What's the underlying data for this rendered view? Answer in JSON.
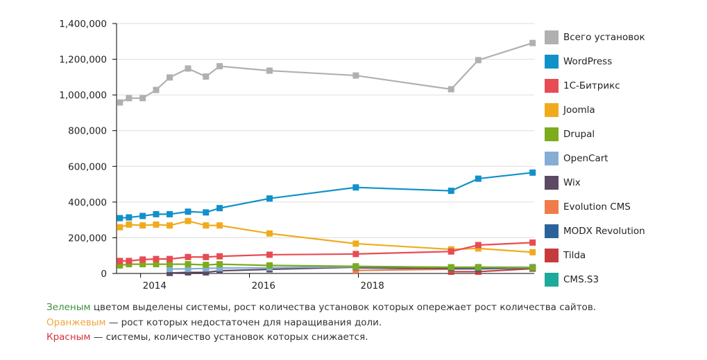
{
  "chart_data": {
    "type": "line",
    "title": "",
    "xlabel": "",
    "ylabel": "",
    "xlim": [
      "2013-07-24",
      "2021-03-26"
    ],
    "ylim": [
      0,
      1400000
    ],
    "grid": "horizontal",
    "legend_position": "right",
    "x_ticks": [
      {
        "date": "2014-01-01",
        "label": "2014"
      },
      {
        "date": "2016-01-01",
        "label": "2016"
      },
      {
        "date": "2018-01-01",
        "label": "2018"
      }
    ],
    "y_ticks": [
      {
        "value": 0,
        "label": "0"
      },
      {
        "value": 200000,
        "label": "200,000"
      },
      {
        "value": 400000,
        "label": "400,000"
      },
      {
        "value": 600000,
        "label": "600,000"
      },
      {
        "value": 800000,
        "label": "800,000"
      },
      {
        "value": 1000000,
        "label": "1,000,000"
      },
      {
        "value": 1200000,
        "label": "1,200,000"
      },
      {
        "value": 1400000,
        "label": "1,400,000"
      }
    ],
    "series": [
      {
        "name": "Всего установок",
        "color": "#b0b0b0",
        "points": [
          [
            "2013-08-15",
            958000
          ],
          [
            "2013-10-15",
            982000
          ],
          [
            "2014-01-15",
            982000
          ],
          [
            "2014-04-15",
            1028000
          ],
          [
            "2014-07-15",
            1098000
          ],
          [
            "2014-11-15",
            1148000
          ],
          [
            "2015-03-15",
            1103000
          ],
          [
            "2015-06-15",
            1161000
          ],
          [
            "2016-05-15",
            1136000
          ],
          [
            "2017-12-15",
            1109000
          ],
          [
            "2019-09-15",
            1032000
          ],
          [
            "2020-03-15",
            1195000
          ],
          [
            "2021-03-15",
            1291000
          ]
        ]
      },
      {
        "name": "WordPress",
        "color": "#1191c9",
        "points": [
          [
            "2013-08-15",
            310000
          ],
          [
            "2013-10-15",
            314000
          ],
          [
            "2014-01-15",
            322000
          ],
          [
            "2014-04-15",
            332000
          ],
          [
            "2014-07-15",
            332000
          ],
          [
            "2014-11-15",
            346000
          ],
          [
            "2015-03-15",
            342000
          ],
          [
            "2015-06-15",
            366000
          ],
          [
            "2016-05-15",
            420000
          ],
          [
            "2017-12-15",
            482000
          ],
          [
            "2019-09-15",
            463000
          ],
          [
            "2020-03-15",
            531000
          ],
          [
            "2021-03-15",
            565000
          ]
        ]
      },
      {
        "name": "1С-Битрикс",
        "color": "#e84b53",
        "points": [
          [
            "2013-08-15",
            70000
          ],
          [
            "2013-10-15",
            70000
          ],
          [
            "2014-01-15",
            78000
          ],
          [
            "2014-04-15",
            81000
          ],
          [
            "2014-07-15",
            81000
          ],
          [
            "2014-11-15",
            92000
          ],
          [
            "2015-03-15",
            92000
          ],
          [
            "2015-06-15",
            96000
          ],
          [
            "2016-05-15",
            105000
          ],
          [
            "2017-12-15",
            109000
          ],
          [
            "2019-09-15",
            123000
          ],
          [
            "2020-03-15",
            159000
          ],
          [
            "2021-03-15",
            173000
          ]
        ]
      },
      {
        "name": "Joomla",
        "color": "#f0ab1d",
        "points": [
          [
            "2013-08-15",
            259000
          ],
          [
            "2013-10-15",
            274000
          ],
          [
            "2014-01-15",
            269000
          ],
          [
            "2014-04-15",
            274000
          ],
          [
            "2014-07-15",
            269000
          ],
          [
            "2014-11-15",
            294000
          ],
          [
            "2015-03-15",
            269000
          ],
          [
            "2015-06-15",
            269000
          ],
          [
            "2016-05-15",
            224000
          ],
          [
            "2017-12-15",
            167000
          ],
          [
            "2019-09-15",
            135000
          ],
          [
            "2020-03-15",
            140000
          ],
          [
            "2021-03-15",
            119000
          ]
        ]
      },
      {
        "name": "Drupal",
        "color": "#7cab1c",
        "points": [
          [
            "2013-08-15",
            45000
          ],
          [
            "2013-10-15",
            52000
          ],
          [
            "2014-01-15",
            52000
          ],
          [
            "2014-04-15",
            52000
          ],
          [
            "2014-07-15",
            52000
          ],
          [
            "2014-11-15",
            52000
          ],
          [
            "2015-03-15",
            48000
          ],
          [
            "2015-06-15",
            52000
          ],
          [
            "2016-05-15",
            45000
          ],
          [
            "2017-12-15",
            40000
          ],
          [
            "2019-09-15",
            35000
          ],
          [
            "2020-03-15",
            34000
          ],
          [
            "2021-03-15",
            32000
          ]
        ]
      },
      {
        "name": "OpenCart",
        "color": "#86aed3",
        "points": [
          [
            "2014-07-15",
            25000
          ],
          [
            "2014-11-15",
            26000
          ],
          [
            "2015-03-15",
            28000
          ],
          [
            "2015-06-15",
            30000
          ],
          [
            "2016-05-15",
            32000
          ],
          [
            "2017-12-15",
            38000
          ],
          [
            "2019-09-15",
            35000
          ],
          [
            "2020-03-15",
            36000
          ],
          [
            "2021-03-15",
            35000
          ]
        ]
      },
      {
        "name": "Wix",
        "color": "#5b4a63",
        "points": [
          [
            "2014-07-15",
            3000
          ],
          [
            "2014-11-15",
            6000
          ],
          [
            "2015-03-15",
            6000
          ],
          [
            "2015-06-15",
            15000
          ],
          [
            "2016-05-15",
            23000
          ],
          [
            "2017-12-15",
            35000
          ],
          [
            "2019-09-15",
            28000
          ],
          [
            "2020-03-15",
            32000
          ],
          [
            "2021-03-15",
            30000
          ]
        ]
      },
      {
        "name": "Evolution CMS",
        "color": "#f07c4a",
        "points": [
          [
            "2017-12-15",
            17000
          ],
          [
            "2019-09-15",
            24000
          ]
        ]
      },
      {
        "name": "MODX Revolution",
        "color": "#2a6399",
        "points": [
          [
            "2017-12-15",
            32000
          ],
          [
            "2019-09-15",
            26000
          ],
          [
            "2020-03-15",
            26000
          ],
          [
            "2021-03-15",
            30000
          ]
        ]
      },
      {
        "name": "Tilda",
        "color": "#c63b3e",
        "points": [
          [
            "2019-09-15",
            10000
          ],
          [
            "2020-03-15",
            10000
          ],
          [
            "2021-03-15",
            27000
          ]
        ]
      },
      {
        "name": "CMS.S3",
        "color": "#1fa99b",
        "points": [
          [
            "2021-03-15",
            36000
          ]
        ]
      }
    ]
  },
  "notes": [
    {
      "highlight": "Зеленым",
      "color": "#3e8e3e",
      "text": " цветом выделены системы, рост количества установок которых опережает рост количества сайтов."
    },
    {
      "highlight": "Оранжевым",
      "color": "#f0a53c",
      "text": " — рост которых недостаточен для наращивания доли."
    },
    {
      "highlight": "Красным",
      "color": "#d8303a",
      "text": " — системы, количество установок которых снижается."
    }
  ]
}
